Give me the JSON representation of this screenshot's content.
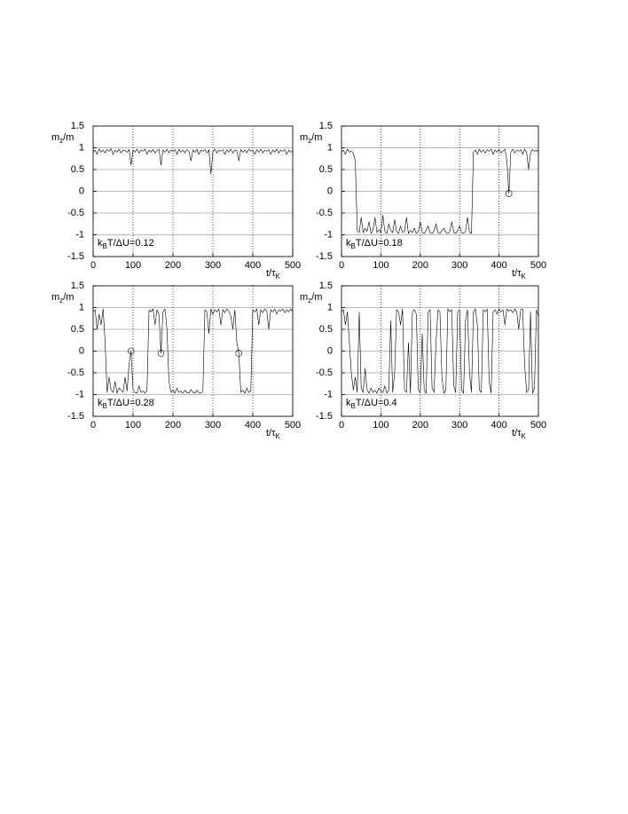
{
  "chart_data": [
    {
      "type": "line",
      "ylabel": [
        "m",
        "z",
        "/m"
      ],
      "xlabel": [
        "t/τ",
        "K"
      ],
      "annotation": [
        "k",
        "B",
        "T/ΔU=0.12"
      ],
      "color": "#000000",
      "grid": true,
      "xlim": [
        0,
        500
      ],
      "ylim": [
        -1.5,
        1.5
      ],
      "xticks": [
        0,
        100,
        200,
        300,
        400,
        500
      ],
      "yticks": [
        -1.5,
        -1,
        -0.5,
        0,
        0.5,
        1,
        1.5
      ],
      "x": [
        0,
        5,
        10,
        15,
        20,
        25,
        30,
        35,
        40,
        45,
        50,
        55,
        60,
        65,
        70,
        75,
        80,
        85,
        90,
        95,
        100,
        105,
        110,
        115,
        120,
        125,
        130,
        135,
        140,
        145,
        150,
        155,
        160,
        165,
        170,
        175,
        180,
        185,
        190,
        195,
        200,
        205,
        210,
        215,
        220,
        225,
        230,
        235,
        240,
        245,
        250,
        255,
        260,
        265,
        270,
        275,
        280,
        285,
        290,
        295,
        300,
        305,
        310,
        315,
        320,
        325,
        330,
        335,
        340,
        345,
        350,
        355,
        360,
        365,
        370,
        375,
        380,
        385,
        390,
        395,
        400,
        405,
        410,
        415,
        420,
        425,
        430,
        435,
        440,
        445,
        450,
        455,
        460,
        465,
        470,
        475,
        480,
        485,
        490,
        495,
        500
      ],
      "values": [
        0.9,
        0.95,
        0.85,
        0.97,
        0.9,
        0.95,
        0.88,
        0.96,
        0.92,
        0.98,
        0.85,
        0.95,
        0.9,
        0.97,
        0.88,
        0.95,
        0.93,
        0.9,
        0.96,
        0.6,
        0.95,
        0.9,
        0.97,
        0.88,
        0.95,
        0.92,
        0.97,
        0.85,
        0.95,
        0.9,
        0.96,
        0.88,
        0.93,
        0.97,
        0.6,
        0.95,
        0.9,
        0.97,
        0.88,
        0.95,
        0.92,
        0.96,
        0.85,
        0.97,
        0.9,
        0.95,
        0.88,
        0.96,
        0.92,
        0.7,
        0.95,
        0.9,
        0.97,
        0.85,
        0.95,
        0.92,
        0.96,
        0.88,
        0.95,
        0.4,
        0.9,
        0.97,
        0.88,
        0.95,
        0.92,
        0.96,
        0.85,
        0.95,
        0.9,
        0.97,
        0.88,
        0.95,
        0.93,
        0.7,
        0.96,
        0.9,
        0.95,
        0.88,
        0.97,
        0.92,
        0.95,
        0.85,
        0.96,
        0.9,
        0.97,
        0.88,
        0.95,
        0.92,
        0.96,
        0.85,
        0.95,
        0.9,
        0.97,
        0.88,
        0.95,
        0.92,
        0.96,
        0.85,
        0.95,
        0.9,
        0.93
      ]
    },
    {
      "type": "line",
      "ylabel": [
        "m",
        "z",
        "/m"
      ],
      "xlabel": [
        "t/τ",
        "K"
      ],
      "annotation": [
        "k",
        "B",
        "T/ΔU=0.18"
      ],
      "color": "#000000",
      "grid": true,
      "xlim": [
        0,
        500
      ],
      "ylim": [
        -1.5,
        1.5
      ],
      "xticks": [
        0,
        100,
        200,
        300,
        400,
        500
      ],
      "yticks": [
        -1.5,
        -1,
        -0.5,
        0,
        0.5,
        1,
        1.5
      ],
      "x": [
        0,
        5,
        10,
        15,
        20,
        25,
        30,
        35,
        40,
        45,
        50,
        55,
        60,
        65,
        70,
        75,
        80,
        85,
        90,
        95,
        100,
        105,
        110,
        115,
        120,
        125,
        130,
        135,
        140,
        145,
        150,
        155,
        160,
        165,
        170,
        175,
        180,
        185,
        190,
        195,
        200,
        205,
        210,
        215,
        220,
        225,
        230,
        235,
        240,
        245,
        250,
        255,
        260,
        265,
        270,
        275,
        280,
        285,
        290,
        295,
        300,
        305,
        310,
        315,
        320,
        325,
        330,
        335,
        340,
        345,
        350,
        355,
        360,
        365,
        370,
        375,
        380,
        385,
        390,
        395,
        400,
        405,
        410,
        415,
        420,
        425,
        430,
        435,
        440,
        445,
        450,
        455,
        460,
        465,
        470,
        475,
        480,
        485,
        490,
        495,
        500
      ],
      "values": [
        0.9,
        0.95,
        0.85,
        0.97,
        0.9,
        0.92,
        0.88,
        0.7,
        -0.9,
        -0.95,
        -0.6,
        -0.95,
        -0.85,
        -0.92,
        -0.7,
        -0.97,
        -0.9,
        -0.6,
        -0.95,
        -0.88,
        -0.95,
        -0.55,
        -0.92,
        -0.97,
        -0.75,
        -0.9,
        -0.95,
        -0.65,
        -0.93,
        -0.97,
        -0.8,
        -0.95,
        -0.92,
        -0.6,
        -0.97,
        -0.9,
        -0.95,
        -0.85,
        -0.97,
        -0.93,
        -0.7,
        -0.95,
        -0.97,
        -0.9,
        -0.8,
        -0.95,
        -0.97,
        -0.92,
        -0.75,
        -0.95,
        -0.97,
        -0.9,
        -0.85,
        -0.95,
        -0.97,
        -0.93,
        -0.7,
        -0.95,
        -0.97,
        -0.9,
        -0.8,
        -0.95,
        -0.97,
        -0.92,
        -0.6,
        -0.95,
        -0.97,
        0.9,
        0.95,
        0.85,
        0.97,
        0.9,
        0.95,
        0.88,
        0.96,
        0.92,
        0.97,
        0.85,
        0.95,
        0.9,
        0.96,
        0.88,
        0.93,
        0.97,
        0.7,
        -0.05,
        0.9,
        0.97,
        0.88,
        0.95,
        0.92,
        0.96,
        0.85,
        0.97,
        0.9,
        0.5,
        0.88,
        0.96,
        0.92,
        0.95,
        0.9
      ],
      "markers": {
        "x": [
          425
        ],
        "values": [
          -0.05
        ]
      }
    },
    {
      "type": "line",
      "ylabel": [
        "m",
        "z",
        "/m"
      ],
      "xlabel": [
        "t/τ",
        "K"
      ],
      "annotation": [
        "k",
        "B",
        "T/ΔU=0.28"
      ],
      "color": "#000000",
      "grid": true,
      "xlim": [
        0,
        500
      ],
      "ylim": [
        -1.5,
        1.5
      ],
      "xticks": [
        0,
        100,
        200,
        300,
        400,
        500
      ],
      "yticks": [
        -1.5,
        -1,
        -0.5,
        0,
        0.5,
        1,
        1.5
      ],
      "x": [
        0,
        5,
        10,
        15,
        20,
        25,
        30,
        35,
        40,
        45,
        50,
        55,
        60,
        65,
        70,
        75,
        80,
        85,
        90,
        95,
        100,
        105,
        110,
        115,
        120,
        125,
        130,
        135,
        140,
        145,
        150,
        155,
        160,
        165,
        170,
        175,
        180,
        185,
        190,
        195,
        200,
        205,
        210,
        215,
        220,
        225,
        230,
        235,
        240,
        245,
        250,
        255,
        260,
        265,
        270,
        275,
        280,
        285,
        290,
        295,
        300,
        305,
        310,
        315,
        320,
        325,
        330,
        335,
        340,
        345,
        350,
        355,
        360,
        365,
        370,
        375,
        380,
        385,
        390,
        395,
        400,
        405,
        410,
        415,
        420,
        425,
        430,
        435,
        440,
        445,
        450,
        455,
        460,
        465,
        470,
        475,
        480,
        485,
        490,
        495,
        500
      ],
      "values": [
        0.9,
        0.95,
        0.5,
        0.85,
        0.6,
        0.97,
        0.2,
        -0.95,
        -0.6,
        -0.9,
        -0.95,
        -0.7,
        -0.97,
        -0.85,
        -0.9,
        -0.95,
        -0.6,
        -0.92,
        -0.3,
        0,
        -0.9,
        -0.95,
        -0.97,
        -0.8,
        -0.95,
        -0.92,
        -0.97,
        -0.9,
        0.95,
        0.9,
        0.97,
        0.6,
        0.95,
        0.85,
        -0.05,
        0.9,
        0.97,
        0.5,
        -0.7,
        -0.95,
        -0.9,
        -0.97,
        -0.85,
        -0.95,
        -0.92,
        -0.97,
        -0.9,
        -0.95,
        -0.97,
        -0.88,
        -0.95,
        -0.97,
        -0.9,
        -0.95,
        -0.97,
        -0.92,
        0.95,
        0.9,
        0.4,
        0.97,
        0.85,
        0.95,
        0.9,
        0.97,
        0.6,
        0.95,
        0.88,
        0.97,
        0.92,
        0.8,
        0.5,
        0.95,
        0.2,
        -0.05,
        -0.95,
        -0.9,
        -0.97,
        -0.85,
        -0.95,
        -0.92,
        0.95,
        0.9,
        0.97,
        0.6,
        0.95,
        0.88,
        0.97,
        0.92,
        0.5,
        0.95,
        0.9,
        0.97,
        0.85,
        0.95,
        0.92,
        0.97,
        0.88,
        0.95,
        0.9,
        0.97,
        0.9
      ],
      "markers": {
        "x": [
          95,
          170,
          365
        ],
        "values": [
          0,
          -0.05,
          -0.05
        ]
      }
    },
    {
      "type": "line",
      "ylabel": [
        "m",
        "z",
        "/m"
      ],
      "xlabel": [
        "t/τ",
        "K"
      ],
      "annotation": [
        "k",
        "B",
        "T/ΔU=0.4"
      ],
      "color": "#000000",
      "grid": true,
      "xlim": [
        0,
        500
      ],
      "ylim": [
        -1.5,
        1.5
      ],
      "xticks": [
        0,
        100,
        200,
        300,
        400,
        500
      ],
      "yticks": [
        -1.5,
        -1,
        -0.5,
        0,
        0.5,
        1,
        1.5
      ],
      "x": [
        0,
        5,
        10,
        15,
        20,
        25,
        30,
        35,
        40,
        45,
        50,
        55,
        60,
        65,
        70,
        75,
        80,
        85,
        90,
        95,
        100,
        105,
        110,
        115,
        120,
        125,
        130,
        135,
        140,
        145,
        150,
        155,
        160,
        165,
        170,
        175,
        180,
        185,
        190,
        195,
        200,
        205,
        210,
        215,
        220,
        225,
        230,
        235,
        240,
        245,
        250,
        255,
        260,
        265,
        270,
        275,
        280,
        285,
        290,
        295,
        300,
        305,
        310,
        315,
        320,
        325,
        330,
        335,
        340,
        345,
        350,
        355,
        360,
        365,
        370,
        375,
        380,
        385,
        390,
        395,
        400,
        405,
        410,
        415,
        420,
        425,
        430,
        435,
        440,
        445,
        450,
        455,
        460,
        465,
        470,
        475,
        480,
        485,
        490,
        495,
        500
      ],
      "values": [
        0.9,
        0.95,
        0.6,
        0.9,
        0.2,
        -0.5,
        -0.9,
        -0.6,
        -0.95,
        0.9,
        -0.85,
        -0.95,
        -0.4,
        -0.9,
        -0.97,
        -0.85,
        -0.95,
        -0.9,
        -0.97,
        -0.85,
        -0.92,
        -0.95,
        -0.8,
        -0.97,
        -0.9,
        0.7,
        -0.95,
        -0.5,
        0.95,
        0.9,
        0.6,
        0.97,
        -0.9,
        -0.95,
        0.2,
        -0.97,
        0.9,
        0.95,
        0.85,
        -0.9,
        -0.95,
        0.4,
        -0.9,
        -0.97,
        0.9,
        0.95,
        -0.85,
        -0.95,
        0.2,
        0.95,
        0.9,
        -0.6,
        -0.97,
        -0.9,
        0.97,
        0.9,
        0.95,
        -0.8,
        -0.95,
        0.9,
        0.95,
        -0.9,
        -0.97,
        0.7,
        0.95,
        -0.5,
        -0.95,
        0.9,
        0.97,
        0.6,
        -0.9,
        -0.95,
        0.95,
        0.9,
        0.97,
        -0.7,
        -0.97,
        0.9,
        0.95,
        0.85,
        0.97,
        0.9,
        0.95,
        0.6,
        0.97,
        0.92,
        0.95,
        0.88,
        0.97,
        0.9,
        0.5,
        0.95,
        0.97,
        -0.3,
        -0.95,
        -0.9,
        0.9,
        -0.97,
        -0.85,
        0.95,
        0.8
      ]
    }
  ]
}
